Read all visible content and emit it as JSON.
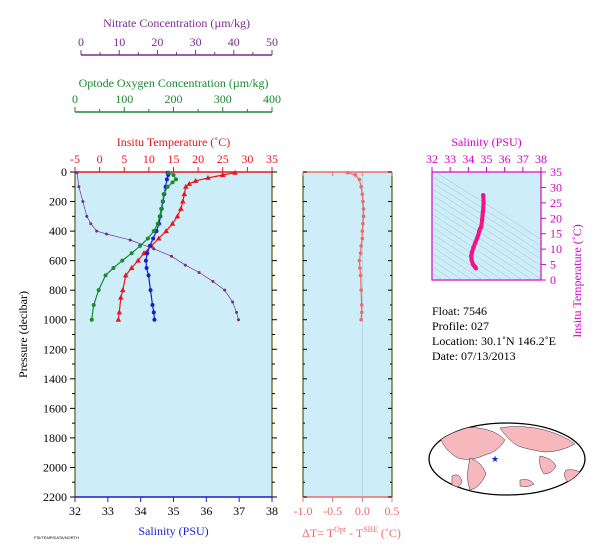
{
  "colors": {
    "nitrate": "#7b2b8e",
    "oxygen": "#1a8a2e",
    "temperature": "#e8161b",
    "salinity": "#1c1ccc",
    "dt": "#f06a6a",
    "ts_axis": "#d400c8",
    "ts_curve": "#f0148c",
    "panel_bg": "#cdeef8",
    "frame": "#5a5a14"
  },
  "info": {
    "float": "Float:  7546",
    "profile": "Profile:  027",
    "location": "Location:  30.1˚N  146.2˚E",
    "date": "Date:  07/13/2013"
  },
  "footer_tiny": "FSI/TEMP/DATA/NORTH",
  "chart_data": [
    {
      "id": "main-profile",
      "type": "scatter",
      "ylabel": "Pressure (decibar)",
      "y_ticks": [
        0,
        200,
        400,
        600,
        800,
        1000,
        1200,
        1400,
        1600,
        1800,
        2000,
        2200
      ],
      "ylim": [
        0,
        2200
      ],
      "y_inverted": true,
      "axes": {
        "nitrate": {
          "label": "Nitrate Concentration (µm/kg)",
          "ticks": [
            0,
            10,
            20,
            30,
            40,
            50
          ],
          "range": [
            0,
            50
          ]
        },
        "oxygen": {
          "label": "Optode Oxygen Concentration (µm/kg)",
          "ticks": [
            0,
            100,
            200,
            300,
            400
          ],
          "range": [
            0,
            400
          ]
        },
        "temperature": {
          "label": "Insitu Temperature (˚C)",
          "ticks": [
            -5,
            0,
            5,
            10,
            15,
            20,
            25,
            30,
            35
          ],
          "range": [
            -5,
            35
          ]
        },
        "salinity": {
          "label": "Salinity (PSU)",
          "ticks": [
            32,
            33,
            34,
            35,
            36,
            37,
            38
          ],
          "range": [
            32,
            38
          ]
        }
      },
      "series": [
        {
          "key": "temperature",
          "x": [
            27.5,
            25.0,
            22.0,
            19.5,
            18.2,
            17.5,
            17.2,
            16.9,
            16.5,
            15.8,
            14.8,
            13.5,
            12.0,
            10.5,
            9.0,
            7.8,
            6.5,
            5.3,
            4.7,
            4.3,
            4.0,
            3.8
          ],
          "y": [
            5,
            20,
            40,
            60,
            80,
            100,
            150,
            200,
            250,
            300,
            350,
            400,
            450,
            500,
            550,
            600,
            650,
            700,
            800,
            850,
            950,
            1000
          ]
        },
        {
          "key": "salinity",
          "x": [
            34.82,
            34.84,
            34.8,
            34.76,
            34.72,
            34.68,
            34.64,
            34.6,
            34.56,
            34.48,
            34.38,
            34.28,
            34.2,
            34.16,
            34.18,
            34.24,
            34.3,
            34.36,
            34.4,
            34.42
          ],
          "y": [
            5,
            20,
            50,
            100,
            150,
            200,
            250,
            300,
            350,
            400,
            450,
            500,
            550,
            600,
            650,
            700,
            800,
            900,
            950,
            1000
          ]
        },
        {
          "key": "oxygen",
          "x": [
            190,
            200,
            205,
            198,
            188,
            180,
            178,
            175,
            172,
            168,
            160,
            148,
            132,
            115,
            96,
            78,
            62,
            48,
            38,
            34
          ],
          "y": [
            5,
            20,
            50,
            70,
            100,
            150,
            200,
            250,
            300,
            350,
            400,
            450,
            500,
            550,
            600,
            650,
            700,
            800,
            900,
            1000
          ]
        },
        {
          "key": "nitrate",
          "x": [
            0.5,
            1.0,
            2.0,
            3.0,
            4.0,
            5.5,
            8.0,
            14.0,
            20.0,
            24.5,
            28.0,
            31.5,
            35.0,
            38.0,
            40.0,
            41.0,
            41.5
          ],
          "y": [
            5,
            100,
            200,
            300,
            350,
            400,
            420,
            460,
            520,
            570,
            630,
            680,
            740,
            800,
            880,
            950,
            1000
          ]
        }
      ]
    },
    {
      "id": "delta-t",
      "type": "scatter",
      "xlabel": "ΔT= T",
      "xlabel_sup1": "Opt",
      "xlabel_mid": " - T",
      "xlabel_sup2": "SBE",
      "xlabel_end": " (˚C)",
      "x_ticks": [
        "-1.0",
        "-0.5",
        "0.0",
        "0.5"
      ],
      "xlim": [
        -1.0,
        0.5
      ],
      "ylim": [
        0,
        2200
      ],
      "series": [
        {
          "key": "dt",
          "x": [
            -0.25,
            -0.12,
            -0.05,
            -0.02,
            0.0,
            0.01,
            0.02,
            0.02,
            0.01,
            0.0,
            0.0,
            -0.02,
            -0.03,
            -0.05,
            -0.04,
            -0.03,
            -0.02,
            -0.01,
            -0.01,
            -0.02
          ],
          "y": [
            5,
            20,
            50,
            100,
            150,
            200,
            250,
            300,
            350,
            400,
            450,
            500,
            550,
            600,
            650,
            700,
            800,
            900,
            950,
            1000
          ]
        }
      ]
    },
    {
      "id": "ts-diagram",
      "type": "line",
      "xlabel": "Salinity (PSU)",
      "ylabel": "Insitu Temperature (˚C)",
      "x_ticks": [
        32,
        33,
        34,
        35,
        36,
        37,
        38
      ],
      "y_ticks": [
        0,
        5,
        10,
        15,
        20,
        25,
        30,
        35
      ],
      "xlim": [
        32,
        38
      ],
      "ylim": [
        0,
        35
      ],
      "series": [
        {
          "key": "ts",
          "x": [
            34.82,
            34.84,
            34.8,
            34.76,
            34.72,
            34.68,
            34.64,
            34.6,
            34.56,
            34.48,
            34.38,
            34.28,
            34.2,
            34.16,
            34.18,
            34.24,
            34.3,
            34.36,
            34.4,
            34.42
          ],
          "y": [
            27.5,
            25.0,
            22.0,
            19.5,
            17.5,
            16.9,
            16.5,
            15.8,
            14.8,
            13.5,
            12.0,
            10.5,
            9.0,
            7.8,
            6.5,
            5.3,
            4.7,
            4.3,
            4.0,
            3.8
          ]
        }
      ]
    }
  ]
}
